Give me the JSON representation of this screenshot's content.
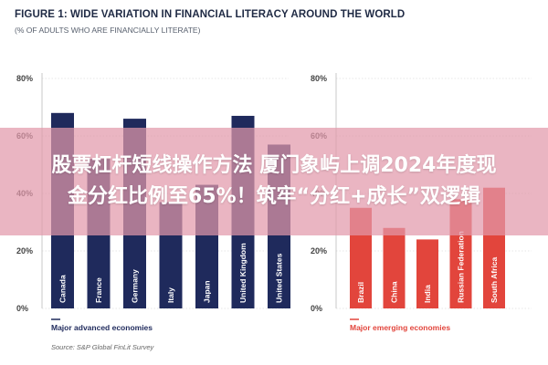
{
  "header": {
    "title": "FIGURE 1: WIDE VARIATION IN FINANCIAL LITERACY AROUND THE WORLD",
    "subtitle": "(% OF ADULTS WHO ARE FINANCIALLY LITERATE)"
  },
  "source": "Source: S&P Global FinLit Survey",
  "overlay": {
    "line1": "股票杠杆短线操作方法 厦门象屿上调2024年度现",
    "line2": "金分红比例至65%！筑牢“分红+成长”双逻辑"
  },
  "colors": {
    "advanced": "#1f2a5c",
    "emerging": "#e2453c",
    "grid": "#cfcfcf"
  },
  "chart_data": [
    {
      "type": "bar",
      "group_label": "Major advanced economies",
      "categories": [
        "Canada",
        "France",
        "Germany",
        "Italy",
        "Japan",
        "United Kingdom",
        "United States"
      ],
      "values": [
        68,
        52,
        66,
        37,
        43,
        67,
        57
      ],
      "ylim": [
        0,
        80
      ],
      "yticks": [
        "0%",
        "20%",
        "40%",
        "60%",
        "80%"
      ],
      "grid": true
    },
    {
      "type": "bar",
      "group_label": "Major emerging economies",
      "categories": [
        "Brazil",
        "China",
        "India",
        "Russian Federation",
        "South Africa"
      ],
      "values": [
        35,
        28,
        24,
        38,
        42
      ],
      "ylim": [
        0,
        80
      ],
      "yticks": [
        "0%",
        "20%",
        "40%",
        "60%",
        "80%"
      ],
      "grid": true
    }
  ]
}
